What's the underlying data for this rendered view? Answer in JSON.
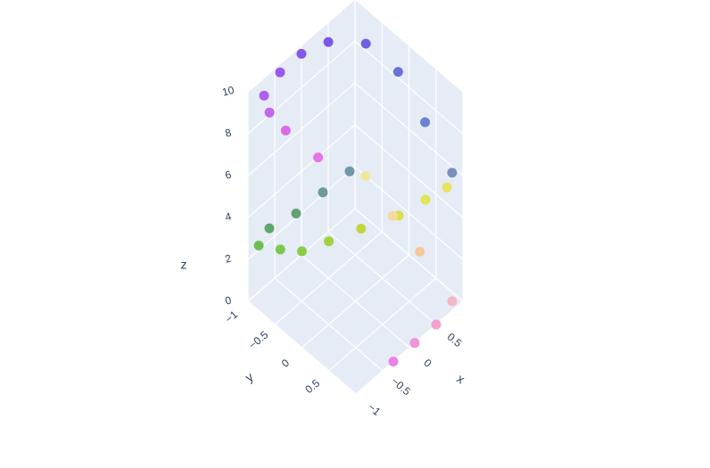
{
  "chart_data": {
    "type": "scatter3d",
    "title": "",
    "xlabel": "x",
    "ylabel": "y",
    "zlabel": "z",
    "x_ticks": [
      "−1",
      "−0.5",
      "0",
      "0.5"
    ],
    "y_ticks": [
      "−1",
      "−0.5",
      "0",
      "0.5"
    ],
    "z_ticks": [
      "0",
      "2",
      "4",
      "6",
      "8",
      "10"
    ],
    "xlim": [
      -1,
      1
    ],
    "ylim": [
      -1,
      1
    ],
    "zlim": [
      0,
      10
    ],
    "grid": true,
    "colors": {
      "scene_bg": "#e5ecf6",
      "grid": "#ffffff",
      "text": "#2a3f5f"
    },
    "points": [
      {
        "x": 0.9,
        "y": 0.9,
        "z": 0.0,
        "color": "#f2b8c6"
      },
      {
        "x": 0.5,
        "y": 1.0,
        "z": 0.0,
        "color": "#f4a0cf"
      },
      {
        "x": 0.1,
        "y": 1.0,
        "z": 0.0,
        "color": "#ee96d8"
      },
      {
        "x": -0.3,
        "y": 1.0,
        "z": 0.0,
        "color": "#eb82e8"
      },
      {
        "x": 1.0,
        "y": 0.2,
        "z": 0.6,
        "color": "#f6c8a0"
      },
      {
        "x": 1.0,
        "y": -0.3,
        "z": 1.2,
        "color": "#f7d9a0"
      },
      {
        "x": 1.0,
        "y": -0.8,
        "z": 2.0,
        "color": "#f0e89a"
      },
      {
        "x": 0.9,
        "y": -1.0,
        "z": 2.0,
        "color": "#6f98a8"
      },
      {
        "x": 0.4,
        "y": -1.0,
        "z": 2.1,
        "color": "#6b9c94"
      },
      {
        "x": -0.1,
        "y": -1.0,
        "z": 2.2,
        "color": "#66a070"
      },
      {
        "x": -0.6,
        "y": -1.0,
        "z": 2.6,
        "color": "#5fa86a"
      },
      {
        "x": -1.0,
        "y": -0.8,
        "z": 3.1,
        "color": "#6dbf55"
      },
      {
        "x": -1.0,
        "y": -0.4,
        "z": 3.8,
        "color": "#7cc84c"
      },
      {
        "x": -1.0,
        "y": 0.0,
        "z": 4.6,
        "color": "#8acc45"
      },
      {
        "x": -0.8,
        "y": 0.3,
        "z": 5.3,
        "color": "#a4d040"
      },
      {
        "x": -0.5,
        "y": 0.6,
        "z": 5.9,
        "color": "#c0d640"
      },
      {
        "x": -0.1,
        "y": 0.9,
        "z": 6.3,
        "color": "#d8e04a"
      },
      {
        "x": 0.3,
        "y": 1.0,
        "z": 6.4,
        "color": "#e2e455"
      },
      {
        "x": 0.7,
        "y": 1.0,
        "z": 6.1,
        "color": "#e8e25e"
      },
      {
        "x": 1.0,
        "y": 0.8,
        "z": 5.7,
        "color": "#7a8fbe"
      },
      {
        "x": 1.0,
        "y": 0.3,
        "z": 7.0,
        "color": "#6b82d0"
      },
      {
        "x": 1.0,
        "y": -0.2,
        "z": 8.3,
        "color": "#6a70dc"
      },
      {
        "x": 0.8,
        "y": -0.6,
        "z": 9.2,
        "color": "#6e60e6"
      },
      {
        "x": 0.4,
        "y": -0.9,
        "z": 9.5,
        "color": "#7a58ea"
      },
      {
        "x": 0.0,
        "y": -1.0,
        "z": 9.6,
        "color": "#8555ec"
      },
      {
        "x": -0.4,
        "y": -1.0,
        "z": 9.6,
        "color": "#9a58ec"
      },
      {
        "x": -0.8,
        "y": -0.9,
        "z": 9.6,
        "color": "#b060ec"
      },
      {
        "x": -1.0,
        "y": -0.6,
        "z": 9.9,
        "color": "#c466ec"
      },
      {
        "x": -1.0,
        "y": -0.3,
        "z": 9.7,
        "color": "#dc6ae8"
      },
      {
        "x": -0.9,
        "y": 0.2,
        "z": 9.3,
        "color": "#e872e8"
      }
    ]
  }
}
